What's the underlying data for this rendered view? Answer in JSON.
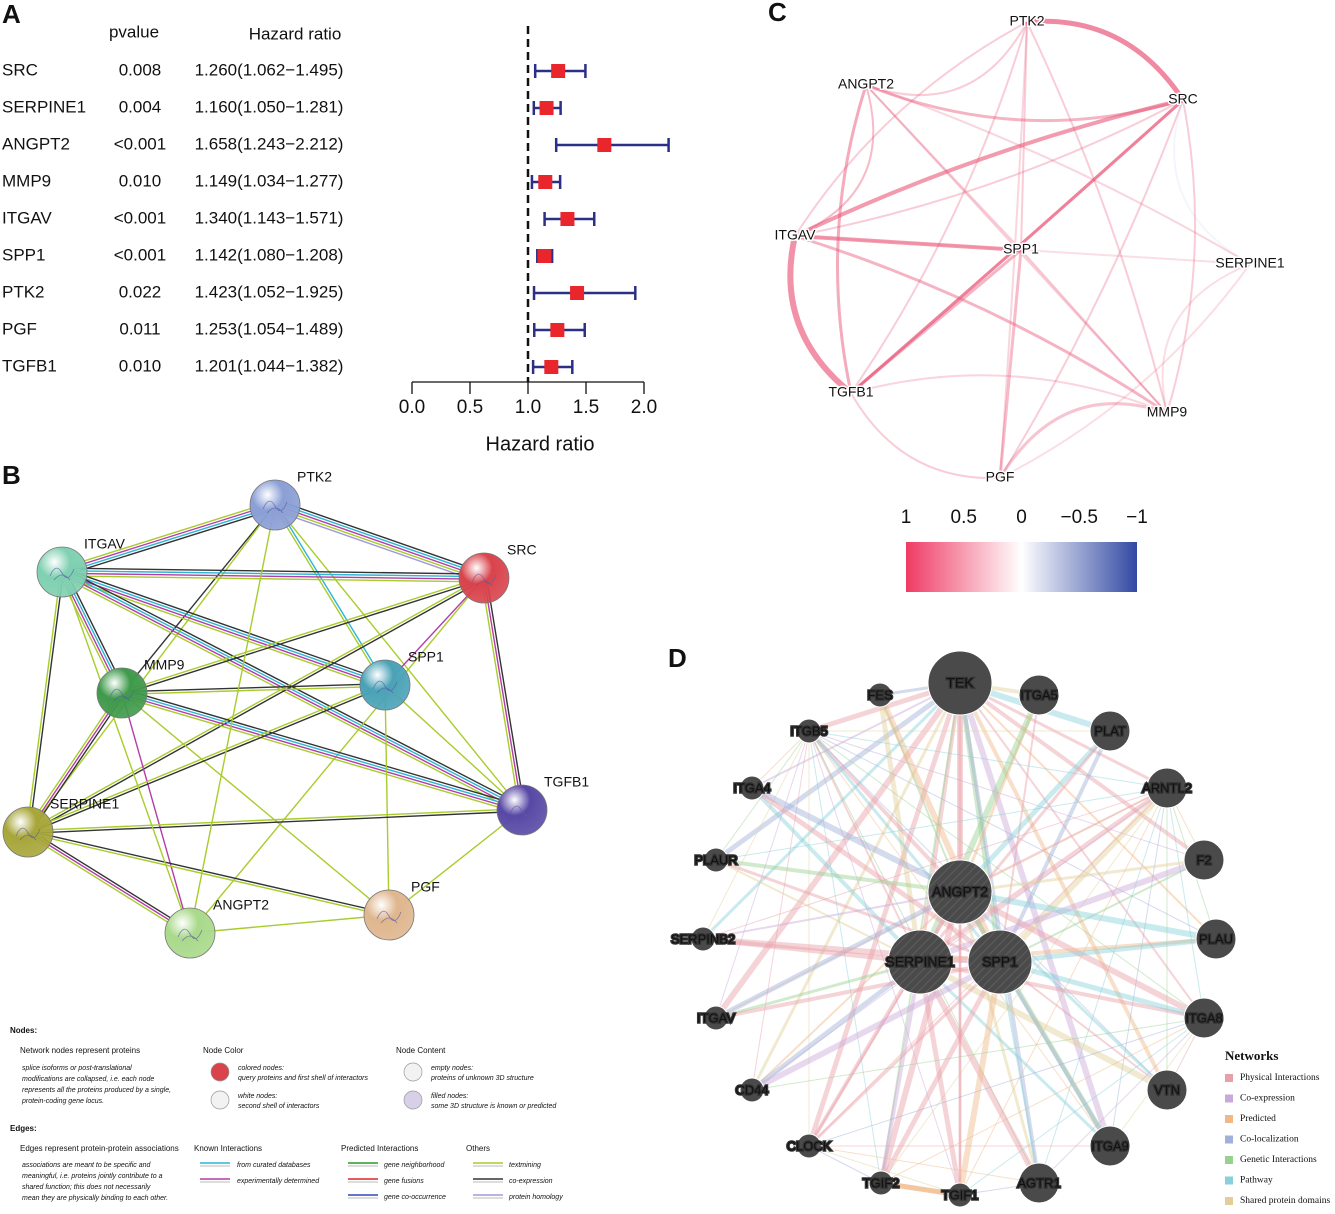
{
  "chart_data": {
    "type": "forest",
    "panel": "A",
    "columns": [
      "pvalue",
      "Hazard ratio"
    ],
    "categories": [
      "SRC",
      "SERPINE1",
      "ANGPT2",
      "MMP9",
      "ITGAV",
      "SPP1",
      "PTK2",
      "PGF",
      "TGFB1"
    ],
    "pvalues": [
      "0.008",
      "0.004",
      "<0.001",
      "0.010",
      "<0.001",
      "<0.001",
      "0.022",
      "0.011",
      "0.010"
    ],
    "values": [
      1.26,
      1.16,
      1.658,
      1.149,
      1.34,
      1.142,
      1.423,
      1.253,
      1.201
    ],
    "lower": [
      1.062,
      1.05,
      1.243,
      1.034,
      1.143,
      1.08,
      1.052,
      1.054,
      1.044
    ],
    "upper": [
      1.495,
      1.281,
      2.212,
      1.277,
      1.571,
      1.208,
      1.925,
      1.489,
      1.382
    ],
    "value_labels": [
      "1.260(1.062−1.495)",
      "1.160(1.050−1.281)",
      "1.658(1.243−2.212)",
      "1.149(1.034−1.277)",
      "1.340(1.143−1.571)",
      "1.142(1.080−1.208)",
      "1.423(1.052−1.925)",
      "1.253(1.054−1.489)",
      "1.201(1.044−1.382)"
    ],
    "color": "#e8262b",
    "ci_color": "#2b2f86",
    "reference": 1,
    "xlabel": "Hazard ratio",
    "xlim": [
      0,
      2
    ],
    "xticks": [
      {
        "value": 0,
        "label": "0.0"
      },
      {
        "value": 0.5,
        "label": "0.5"
      },
      {
        "value": 1,
        "label": "1.0"
      },
      {
        "value": 1.5,
        "label": "1.5"
      },
      {
        "value": 2,
        "label": "2.0"
      }
    ]
  },
  "panel_b": {
    "letter": "B",
    "nodes": [
      {
        "label": "PTK2",
        "color": "#8b9fd6"
      },
      {
        "label": "ITGAV",
        "color": "#7fd0b2"
      },
      {
        "label": "SRC",
        "color": "#d9434c"
      },
      {
        "label": "MMP9",
        "color": "#3f9a4b"
      },
      {
        "label": "SPP1",
        "color": "#4aa2b7"
      },
      {
        "label": "TGFB1",
        "color": "#5848a6"
      },
      {
        "label": "SERPINE1",
        "color": "#a7a63a"
      },
      {
        "label": "ANGPT2",
        "color": "#a9d98a"
      },
      {
        "label": "PGF",
        "color": "#dfb68e"
      }
    ],
    "legend": [
      "Nodes:",
      "Network nodes represent proteins",
      "splice isoforms or post-translational",
      "modifications are collapsed, i.e. each node",
      "represents all the proteins produced by a single,",
      "protein-coding gene locus.",
      "Node Color",
      "colored nodes:",
      "query proteins and first shell of interactors",
      "white nodes:",
      "second shell of interactors",
      "Node Content",
      "empty nodes:",
      "proteins of unknown 3D structure",
      "filled nodes:",
      "some 3D structure is known or predicted",
      "Edges:",
      "Edges represent protein-protein associations",
      "associations are meant to be specific and",
      "meaningful, i.e. proteins jointly contribute to a",
      "shared function; this does not necessarily",
      "mean they are physically binding to each other.",
      "Known Interactions",
      "from curated databases",
      "experimentally determined",
      "Predicted Interactions",
      "gene neighborhood",
      "gene fusions",
      "gene co-occurrence",
      "Others",
      "textmining",
      "co-expression",
      "protein homology"
    ]
  },
  "panel_c": {
    "letter": "C",
    "nodes": [
      "PTK2",
      "SRC",
      "ANGPT2",
      "ITGAV",
      "SPP1",
      "SERPINE1",
      "TGFB1",
      "MMP9",
      "PGF"
    ],
    "colorbar": {
      "colors": [
        "#ef3b64",
        "#ffffff",
        "#3249a3"
      ],
      "lim": [
        1,
        -1
      ],
      "ticks": [
        1,
        0.5,
        0,
        {
          "value": -0.5,
          "label": "−0.5"
        },
        {
          "value": -1,
          "label": "−1"
        }
      ]
    }
  },
  "panel_d": {
    "letter": "D",
    "nodes": [
      "TEK",
      "FES",
      "ITGA5",
      "ITGB5",
      "PLAT",
      "ITGA4",
      "ARNTL2",
      "F2",
      "PLAUR",
      "ANGPT2",
      "PLAU",
      "SERPINB2",
      "SERPINE1",
      "SPP1",
      "ITGAV",
      "ITGA8",
      "CD44",
      "VTN",
      "CLOCK",
      "ITGA9",
      "TGIF2",
      "TGIF1",
      "AGTR1"
    ],
    "legend_title": "Networks",
    "networks": [
      {
        "name": "Physical Interactions",
        "color": "#e8a0a8"
      },
      {
        "name": "Co-expression",
        "color": "#c9a9d9"
      },
      {
        "name": "Predicted",
        "color": "#f0b888"
      },
      {
        "name": "Co-localization",
        "color": "#a0b0d8"
      },
      {
        "name": "Genetic Interactions",
        "color": "#98d090"
      },
      {
        "name": "Pathway",
        "color": "#88d0da"
      },
      {
        "name": "Shared protein domains",
        "color": "#e0d098"
      }
    ]
  }
}
